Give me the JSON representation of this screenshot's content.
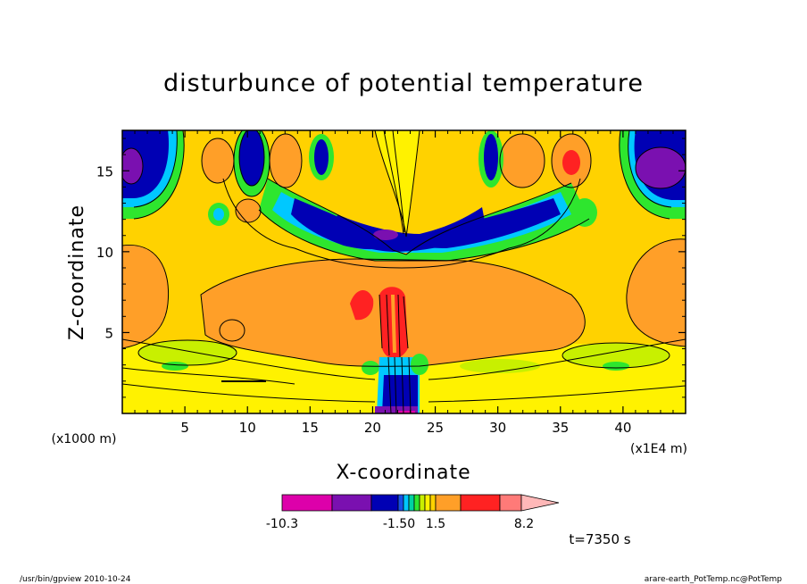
{
  "chart_data": {
    "type": "heatmap",
    "title": "disturbunce of potential temperature",
    "xlabel": "X-coordinate",
    "ylabel": "Z-coordinate",
    "x_unit": "(x1E4 m)",
    "y_unit": "(x1000 m)",
    "xlim": [
      0,
      45
    ],
    "ylim": [
      0,
      17.5
    ],
    "x_ticks": [
      "5",
      "10",
      "15",
      "20",
      "25",
      "30",
      "35",
      "40"
    ],
    "y_ticks": [
      "5",
      "10",
      "15"
    ],
    "colorbar": {
      "tick_labels": [
        "-10.3",
        "-1.50",
        "1.5",
        "8.2"
      ],
      "colors": [
        "#dd00aa",
        "#7a10b0",
        "#0000b4",
        "#1650e6",
        "#00c8ff",
        "#00d2a0",
        "#2ee62e",
        "#c8f000",
        "#fff200",
        "#ffd200",
        "#ff9f28",
        "#ff2222",
        "#ff7a78",
        "#ffb8b8"
      ]
    },
    "annotation": "t=7350 s",
    "footer_left": "/usr/bin/gpview   2010-10-24",
    "footer_right": "arare-earth_PotTemp.nc@PotTemp"
  }
}
